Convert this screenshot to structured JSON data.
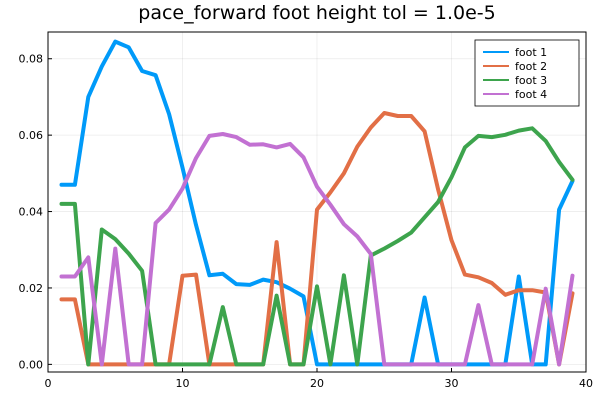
{
  "chart_data": {
    "type": "line",
    "title": "pace_forward foot height tol = 1.0e-5",
    "xlabel": "",
    "ylabel": "",
    "xlim": [
      0,
      40
    ],
    "ylim": [
      -0.002,
      0.087
    ],
    "xticks": [
      0,
      10,
      20,
      30,
      40
    ],
    "yticks": [
      0.0,
      0.02,
      0.04,
      0.06,
      0.08
    ],
    "xtick_labels": [
      "0",
      "10",
      "20",
      "30",
      "40"
    ],
    "ytick_labels": [
      "0.00",
      "0.02",
      "0.04",
      "0.06",
      "0.08"
    ],
    "grid": true,
    "legend_position": "top-right",
    "x": [
      1,
      2,
      3,
      4,
      5,
      6,
      7,
      8,
      9,
      10,
      11,
      12,
      13,
      14,
      15,
      16,
      17,
      18,
      19,
      20,
      21,
      22,
      23,
      24,
      25,
      26,
      27,
      28,
      29,
      30,
      31,
      32,
      33,
      34,
      35,
      36,
      37,
      38,
      39
    ],
    "series": [
      {
        "name": "foot 1",
        "color": "#009af9",
        "values": [
          0.047,
          0.047,
          0.07,
          0.078,
          0.0845,
          0.083,
          0.0768,
          0.0757,
          0.0655,
          0.0515,
          0.0365,
          0.0233,
          0.0237,
          0.021,
          0.0208,
          0.0222,
          0.0215,
          0.0198,
          0.0178,
          0.0,
          0.0,
          0.0,
          0.0,
          0.0,
          0.0,
          0.0,
          0.0,
          0.0175,
          0.0,
          0.0,
          0.0,
          0.0,
          0.0,
          0.0,
          0.023,
          0.0,
          0.0,
          0.0405,
          0.048
        ]
      },
      {
        "name": "foot 2",
        "color": "#e26f46",
        "values": [
          0.017,
          0.017,
          0.0,
          0.0,
          0.0,
          0.0,
          0.0,
          0.0,
          0.0,
          0.0232,
          0.0235,
          0.0,
          0.0,
          0.0,
          0.0,
          0.0,
          0.032,
          0.0,
          0.0,
          0.0405,
          0.045,
          0.05,
          0.057,
          0.062,
          0.0658,
          0.065,
          0.065,
          0.061,
          0.0458,
          0.0325,
          0.0235,
          0.0228,
          0.0213,
          0.0182,
          0.0194,
          0.0194,
          0.0188,
          0.0,
          0.0186
        ]
      },
      {
        "name": "foot 3",
        "color": "#3da44d",
        "values": [
          0.042,
          0.042,
          0.0,
          0.0353,
          0.0328,
          0.029,
          0.0245,
          0.0,
          0.0,
          0.0,
          0.0,
          0.0,
          0.015,
          0.0,
          0.0,
          0.0,
          0.018,
          0.0,
          0.0,
          0.0204,
          0.0,
          0.0233,
          0.0,
          0.0285,
          0.0303,
          0.0323,
          0.0345,
          0.0385,
          0.0425,
          0.049,
          0.0568,
          0.0598,
          0.0595,
          0.0601,
          0.0612,
          0.0618,
          0.0585,
          0.053,
          0.0483
        ]
      },
      {
        "name": "foot 4",
        "color": "#c271d2",
        "values": [
          0.023,
          0.023,
          0.028,
          0.0,
          0.0303,
          0.0,
          0.0,
          0.037,
          0.0405,
          0.046,
          0.054,
          0.0598,
          0.0603,
          0.0595,
          0.0575,
          0.0576,
          0.0568,
          0.0577,
          0.0542,
          0.0465,
          0.0418,
          0.0367,
          0.0335,
          0.0289,
          0.0,
          0.0,
          0.0,
          0.0,
          0.0,
          0.0,
          0.0,
          0.0155,
          0.0,
          0.0,
          0.0,
          0.0,
          0.0198,
          0.0,
          0.0232
        ]
      }
    ]
  }
}
